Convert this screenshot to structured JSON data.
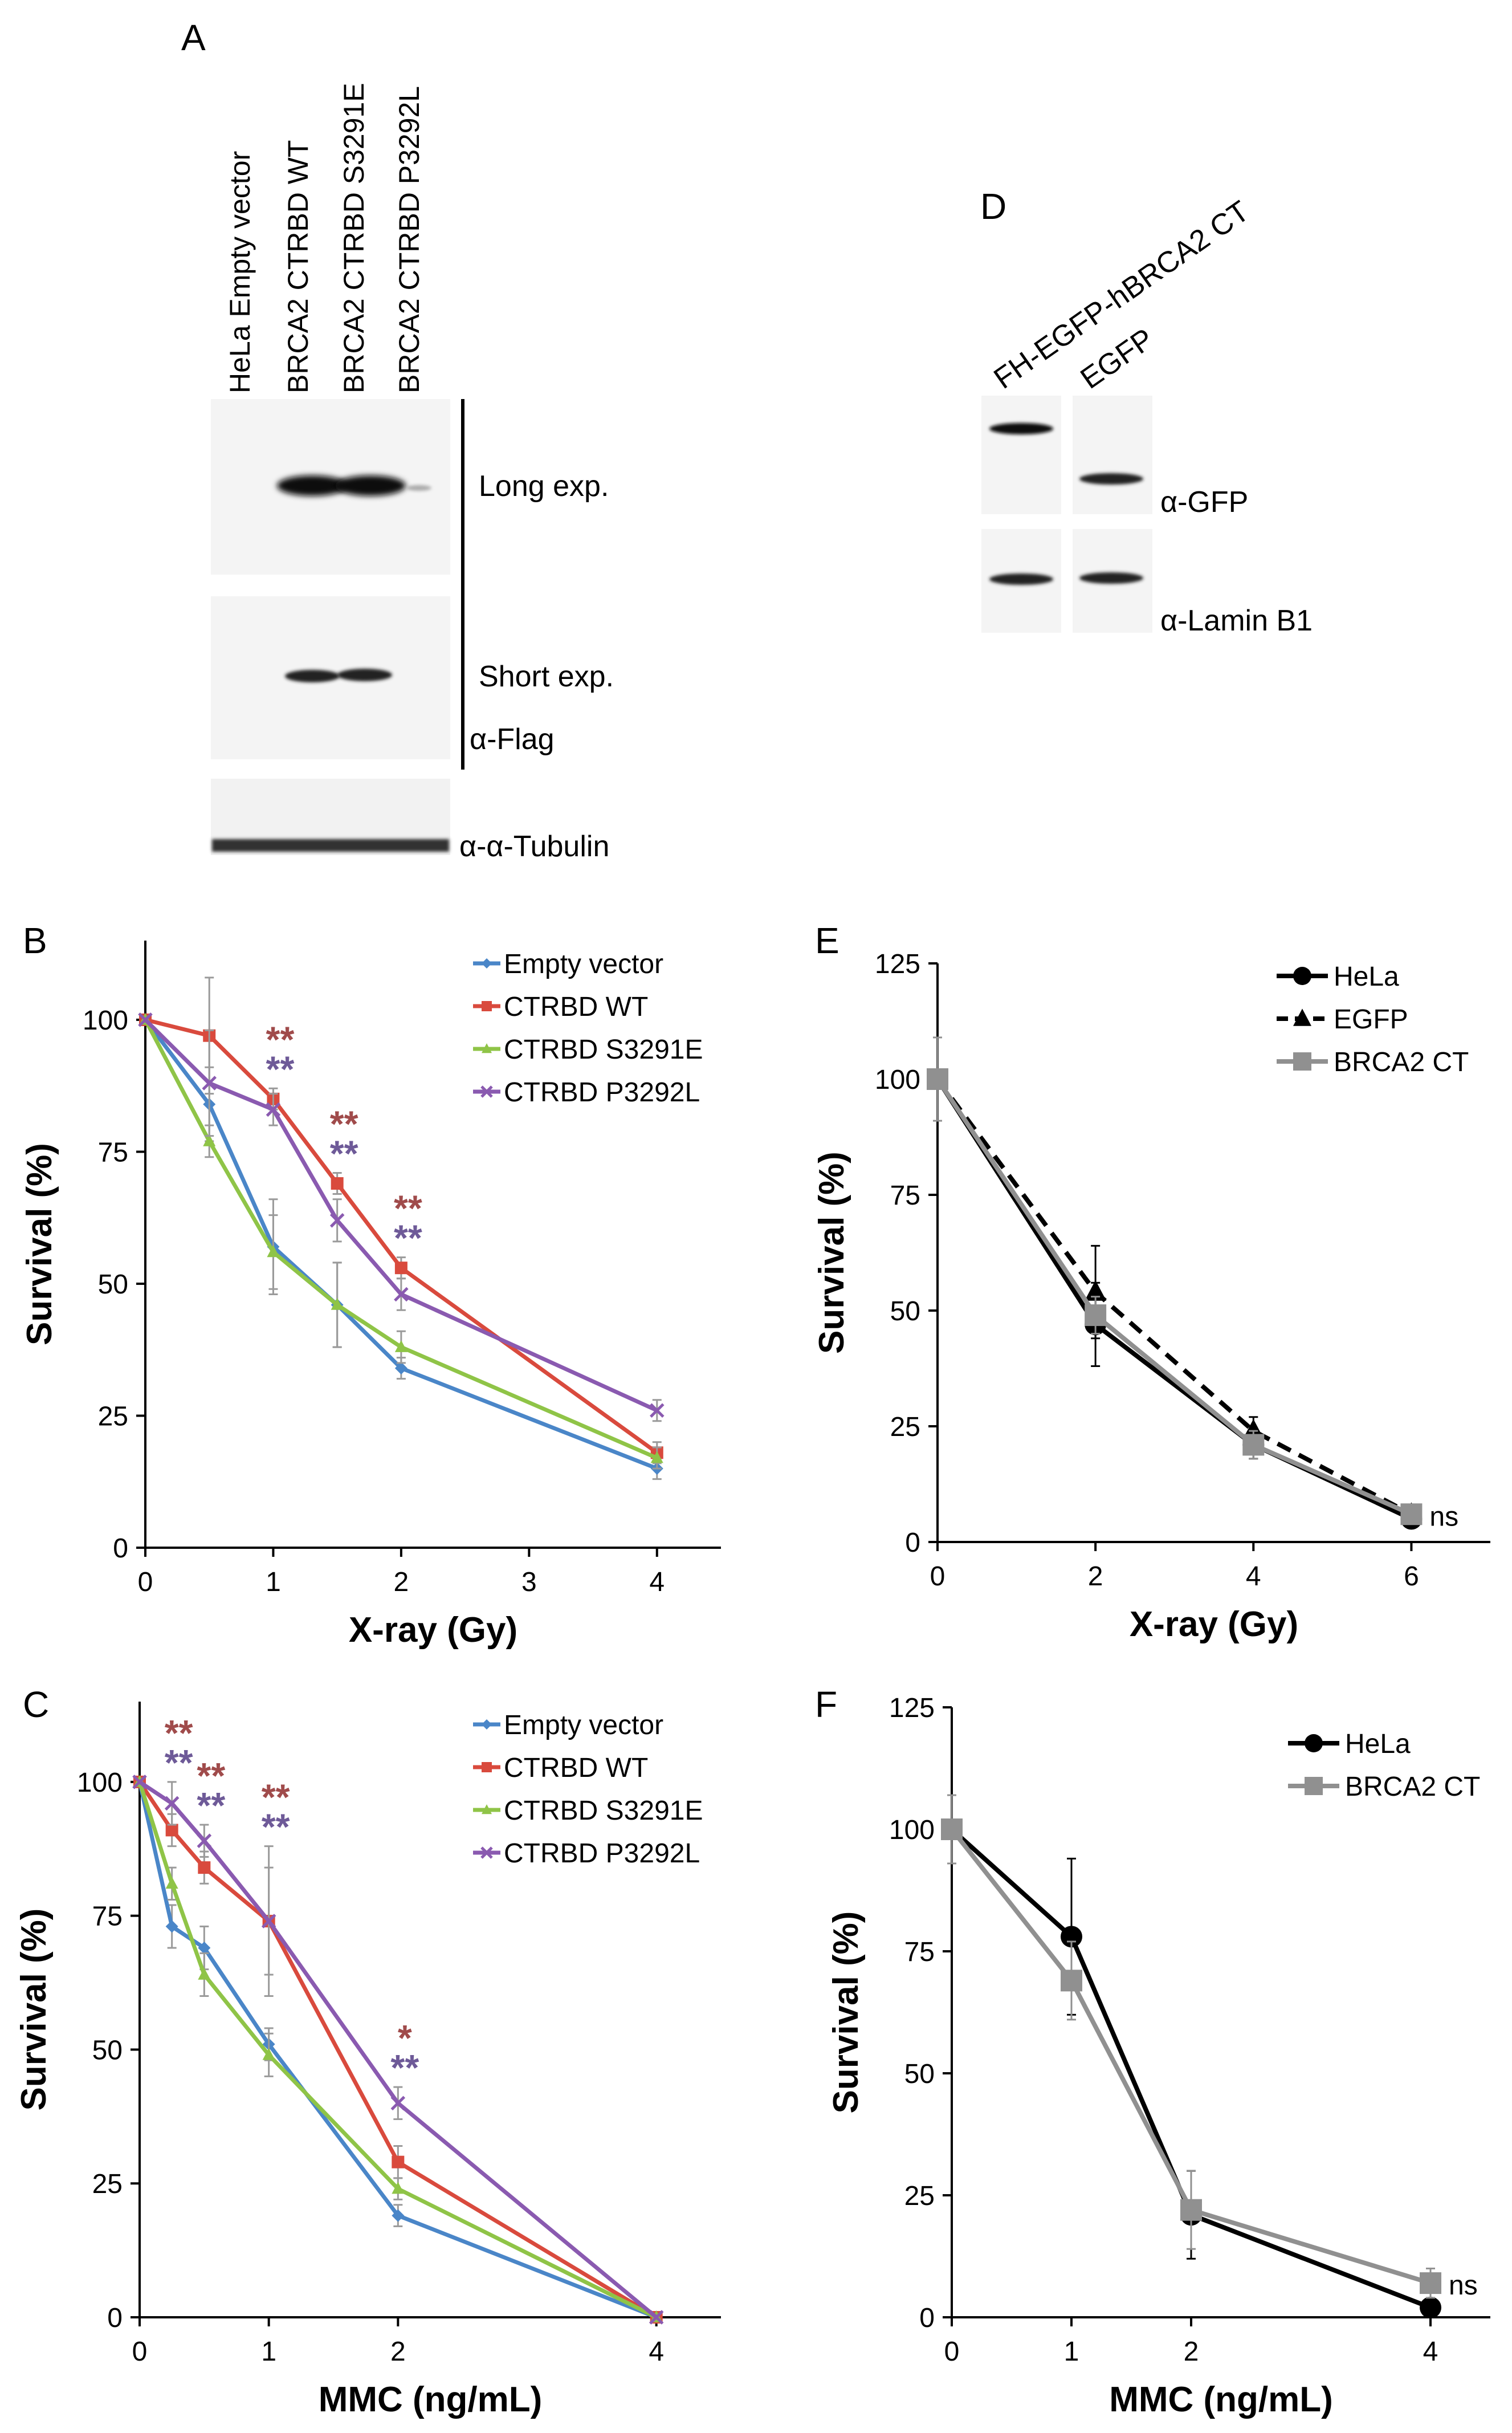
{
  "blot_a": {
    "panel_label": "A",
    "lanes": [
      "HeLa Empty vector",
      "BRCA2 CTRBD WT",
      "BRCA2 CTRBD S3291E",
      "BRCA2 CTRBD P3292L"
    ],
    "band_labels": [
      "Long exp.",
      "Short exp.",
      "α-Flag",
      "α-α-Tubulin"
    ]
  },
  "blot_d": {
    "panel_label": "D",
    "lanes": [
      "FH-EGFP-hBRCA2 CT",
      "EGFP"
    ],
    "band_labels": [
      "α-GFP",
      "α-Lamin B1"
    ]
  },
  "chart_data": [
    {
      "id": "B",
      "panel_label": "B",
      "type": "line",
      "xlabel": "X-ray (Gy)",
      "ylabel": "Survival (%)",
      "xlim": [
        0,
        4.5
      ],
      "ylim": [
        0,
        115
      ],
      "xticks": [
        0,
        1,
        2,
        3,
        4
      ],
      "yticks": [
        0,
        25,
        50,
        75,
        100
      ],
      "legend_position": "top-right",
      "series": [
        {
          "name": "Empty vector",
          "color": "#4a86c8",
          "marker": "diamond",
          "x": [
            0,
            0.5,
            1,
            1.5,
            2,
            4
          ],
          "y": [
            100,
            84,
            57,
            46,
            34,
            15
          ],
          "err": [
            0,
            7,
            9,
            8,
            2,
            2
          ]
        },
        {
          "name": "CTRBD WT",
          "color": "#d94a3d",
          "marker": "square",
          "x": [
            0,
            0.5,
            1,
            1.5,
            2,
            4
          ],
          "y": [
            100,
            97,
            85,
            69,
            53,
            18
          ],
          "err": [
            0,
            11,
            2,
            2,
            2,
            2
          ]
        },
        {
          "name": "CTRBD S3291E",
          "color": "#8fc447",
          "marker": "triangle",
          "x": [
            0,
            0.5,
            1,
            1.5,
            2,
            4
          ],
          "y": [
            100,
            77,
            56,
            46,
            38,
            17
          ],
          "err": [
            0,
            3,
            7,
            8,
            3,
            2
          ]
        },
        {
          "name": "CTRBD P3292L",
          "color": "#8a5ab0",
          "marker": "x",
          "x": [
            0,
            0.5,
            1,
            1.5,
            2,
            4
          ],
          "y": [
            100,
            88,
            83,
            62,
            48,
            26
          ],
          "err": [
            0,
            10,
            3,
            4,
            3,
            2
          ]
        }
      ],
      "annotations": [
        {
          "x": 1,
          "text": [
            "**",
            "**"
          ]
        },
        {
          "x": 1.5,
          "text": [
            "**",
            "**"
          ]
        },
        {
          "x": 2,
          "text": [
            "**",
            "**"
          ]
        }
      ]
    },
    {
      "id": "C",
      "panel_label": "C",
      "type": "line",
      "xlabel": "MMC (ng/mL)",
      "ylabel": "Survival (%)",
      "xlim": [
        0,
        4.5
      ],
      "ylim": [
        0,
        115
      ],
      "xticks": [
        0,
        1,
        2,
        4
      ],
      "yticks": [
        0,
        25,
        50,
        75,
        100
      ],
      "legend_position": "top-right",
      "series": [
        {
          "name": "Empty vector",
          "color": "#4a86c8",
          "marker": "diamond",
          "x": [
            0,
            0.25,
            0.5,
            1,
            2,
            4
          ],
          "y": [
            100,
            73,
            69,
            51,
            19,
            0
          ],
          "err": [
            0,
            4,
            4,
            3,
            2,
            0
          ]
        },
        {
          "name": "CTRBD WT",
          "color": "#d94a3d",
          "marker": "square",
          "x": [
            0,
            0.25,
            0.5,
            1,
            2,
            4
          ],
          "y": [
            100,
            91,
            84,
            74,
            29,
            0
          ],
          "err": [
            0,
            3,
            3,
            10,
            3,
            0
          ]
        },
        {
          "name": "CTRBD S3291E",
          "color": "#8fc447",
          "marker": "triangle",
          "x": [
            0,
            0.25,
            0.5,
            1,
            2,
            4
          ],
          "y": [
            100,
            81,
            64,
            49,
            24,
            0
          ],
          "err": [
            0,
            3,
            4,
            4,
            2,
            0
          ]
        },
        {
          "name": "CTRBD P3292L",
          "color": "#8a5ab0",
          "marker": "x",
          "x": [
            0,
            0.25,
            0.5,
            1,
            2,
            4
          ],
          "y": [
            100,
            96,
            89,
            74,
            40,
            0
          ],
          "err": [
            0,
            4,
            3,
            14,
            3,
            0
          ]
        }
      ],
      "annotations": [
        {
          "x": 0.25,
          "text": [
            "**",
            "**"
          ]
        },
        {
          "x": 0.5,
          "text": [
            "**",
            "**"
          ]
        },
        {
          "x": 1,
          "text": [
            "**",
            "**"
          ]
        },
        {
          "x": 2,
          "text": [
            "*",
            "**"
          ]
        }
      ]
    },
    {
      "id": "E",
      "panel_label": "E",
      "type": "line",
      "xlabel": "X-ray (Gy)",
      "ylabel": "Survival (%)",
      "xlim": [
        0,
        7
      ],
      "ylim": [
        0,
        125
      ],
      "xticks": [
        0,
        2,
        4,
        6
      ],
      "yticks": [
        0,
        25,
        50,
        75,
        100,
        125
      ],
      "legend_position": "top-right",
      "series": [
        {
          "name": "HeLa",
          "color": "#000000",
          "marker": "circle",
          "dash": false,
          "x": [
            0,
            2,
            4,
            6
          ],
          "y": [
            100,
            47,
            21,
            5
          ],
          "err": [
            0,
            9,
            3,
            1
          ]
        },
        {
          "name": "EGFP",
          "color": "#000000",
          "marker": "triangle",
          "dash": true,
          "x": [
            0,
            2,
            4,
            6
          ],
          "y": [
            100,
            54,
            24,
            6
          ],
          "err": [
            0,
            10,
            3,
            1
          ]
        },
        {
          "name": "BRCA2 CT",
          "color": "#909090",
          "marker": "square",
          "dash": false,
          "x": [
            0,
            2,
            4,
            6
          ],
          "y": [
            100,
            49,
            21,
            6
          ],
          "err": [
            9,
            4,
            3,
            1
          ]
        }
      ],
      "annotations": [
        {
          "x": 6,
          "y": 6,
          "text": [
            "ns"
          ]
        }
      ]
    },
    {
      "id": "F",
      "panel_label": "F",
      "type": "line",
      "xlabel": "MMC (ng/mL)",
      "ylabel": "Survival (%)",
      "xlim": [
        0,
        4.5
      ],
      "ylim": [
        0,
        125
      ],
      "xticks": [
        0,
        1,
        2,
        4
      ],
      "yticks": [
        0,
        25,
        50,
        75,
        100,
        125
      ],
      "legend_position": "top-right",
      "series": [
        {
          "name": "HeLa",
          "color": "#000000",
          "marker": "circle",
          "x": [
            0,
            1,
            2,
            4
          ],
          "y": [
            100,
            78,
            21,
            2
          ],
          "err": [
            0,
            16,
            9,
            1
          ]
        },
        {
          "name": "BRCA2 CT",
          "color": "#909090",
          "marker": "square",
          "x": [
            0,
            1,
            2,
            4
          ],
          "y": [
            100,
            69,
            22,
            7
          ],
          "err": [
            7,
            8,
            8,
            3
          ]
        }
      ],
      "annotations": [
        {
          "x": 4,
          "y": 7,
          "text": [
            "ns"
          ]
        }
      ]
    }
  ]
}
